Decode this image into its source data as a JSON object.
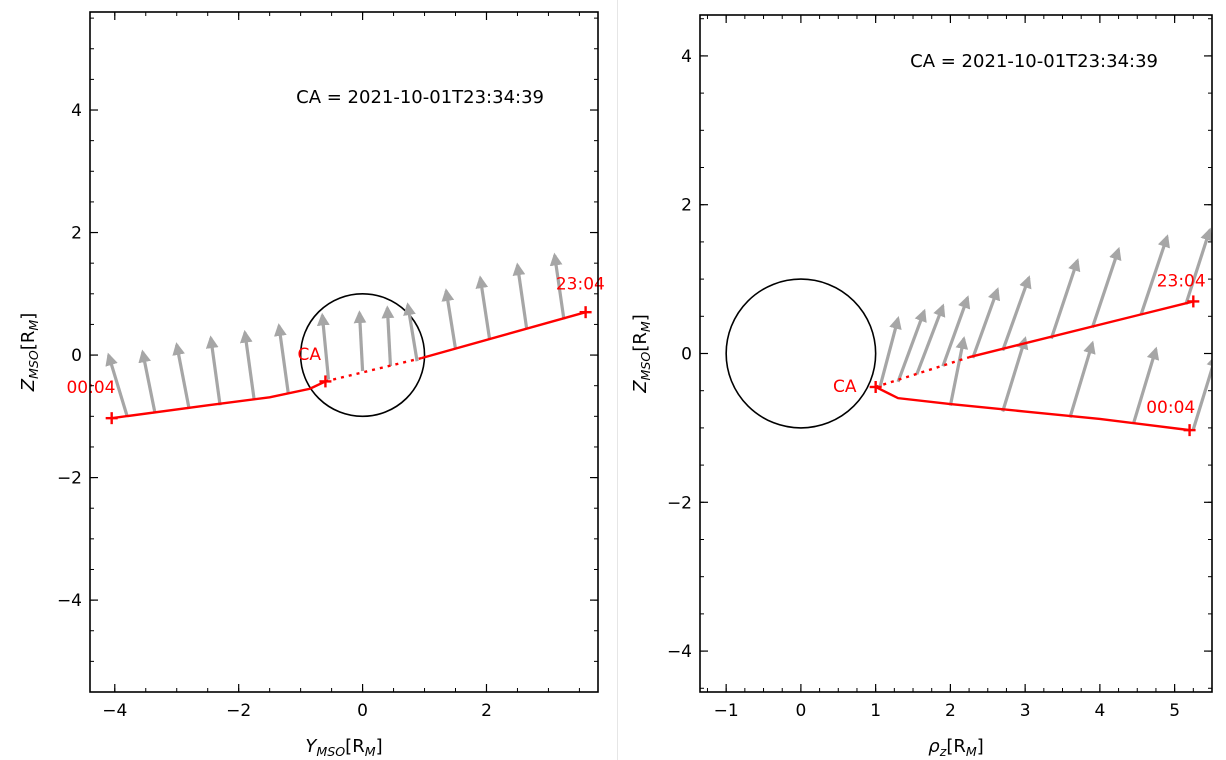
{
  "chart_data": [
    {
      "type": "line",
      "xlabel": "Y",
      "xlabel_sub": "MSO",
      "xlabel_unit": "[R",
      "xlabel_unit_sub": "M",
      "ylabel": "Z",
      "ylabel_sub": "MSO",
      "ylabel_unit": "[R",
      "ylabel_unit_sub": "M",
      "xlim": [
        -4.4,
        3.8
      ],
      "ylim": [
        -5.5,
        5.6
      ],
      "xticks": [
        -4,
        -2,
        0,
        2
      ],
      "yticks": [
        -4,
        -2,
        0,
        2,
        4
      ],
      "xtick_labels": [
        "−4",
        "−2",
        "0",
        "2"
      ],
      "ytick_labels": [
        "−4",
        "−2",
        "0",
        "2",
        "4"
      ],
      "annotation": "CA = 2021-10-01T23:34:39",
      "planet_radius": 1,
      "trajectory_color": "#ff0000",
      "arrow_color": "#a6a6a6",
      "trajectory_solid_a": [
        [
          -4.05,
          -1.03
        ],
        [
          -2.5,
          -0.82
        ],
        [
          -1.5,
          -0.69
        ],
        [
          -0.85,
          -0.55
        ],
        [
          -0.6,
          -0.43
        ]
      ],
      "trajectory_dotted": [
        [
          -0.6,
          -0.43
        ],
        [
          0.95,
          -0.05
        ]
      ],
      "trajectory_solid_b": [
        [
          0.95,
          -0.05
        ],
        [
          3.6,
          0.7
        ]
      ],
      "markers": [
        {
          "label": "00:04",
          "x": -4.05,
          "y": -1.03,
          "lx": -4.78,
          "ly": -0.62
        },
        {
          "label": "CA",
          "x": -0.6,
          "y": -0.43,
          "lx": -1.05,
          "ly": -0.08
        },
        {
          "label": "23:04",
          "x": 3.6,
          "y": 0.7,
          "lx": 3.12,
          "ly": 1.07
        }
      ],
      "vectors": [
        {
          "x": -3.8,
          "y": -1.0,
          "dx": -0.3,
          "dy": 1.0
        },
        {
          "x": -3.35,
          "y": -0.95,
          "dx": -0.2,
          "dy": 1.0
        },
        {
          "x": -2.8,
          "y": -0.88,
          "dx": -0.2,
          "dy": 1.05
        },
        {
          "x": -2.3,
          "y": -0.82,
          "dx": -0.15,
          "dy": 1.1
        },
        {
          "x": -1.75,
          "y": -0.73,
          "dx": -0.15,
          "dy": 1.1
        },
        {
          "x": -1.2,
          "y": -0.62,
          "dx": -0.15,
          "dy": 1.1
        },
        {
          "x": -0.55,
          "y": -0.4,
          "dx": -0.1,
          "dy": 1.05
        },
        {
          "x": 0.0,
          "y": -0.26,
          "dx": -0.05,
          "dy": 0.95
        },
        {
          "x": 0.45,
          "y": -0.18,
          "dx": -0.05,
          "dy": 0.95
        },
        {
          "x": 0.88,
          "y": -0.1,
          "dx": -0.15,
          "dy": 0.92
        },
        {
          "x": 1.5,
          "y": 0.1,
          "dx": -0.15,
          "dy": 0.95
        },
        {
          "x": 2.05,
          "y": 0.26,
          "dx": -0.15,
          "dy": 1.0
        },
        {
          "x": 2.65,
          "y": 0.42,
          "dx": -0.15,
          "dy": 1.05
        },
        {
          "x": 3.25,
          "y": 0.58,
          "dx": -0.15,
          "dy": 1.05
        }
      ]
    },
    {
      "type": "line",
      "xlabel": "ρ",
      "xlabel_sub": "z",
      "xlabel_unit": "[R",
      "xlabel_unit_sub": "M",
      "ylabel": "Z",
      "ylabel_sub": "MSO",
      "ylabel_unit": "[R",
      "ylabel_unit_sub": "M",
      "xlim": [
        -1.35,
        5.5
      ],
      "ylim": [
        -4.55,
        4.55
      ],
      "xticks": [
        -1,
        0,
        1,
        2,
        3,
        4,
        5
      ],
      "yticks": [
        -4,
        -2,
        0,
        2,
        4
      ],
      "xtick_labels": [
        "−1",
        "0",
        "1",
        "2",
        "3",
        "4",
        "5"
      ],
      "ytick_labels": [
        "−4",
        "−2",
        "0",
        "2",
        "4"
      ],
      "annotation": "CA = 2021-10-01T23:34:39",
      "planet_radius": 1,
      "trajectory_color": "#ff0000",
      "arrow_color": "#a6a6a6",
      "trajectory_solid_a": [
        [
          1.0,
          -0.45
        ],
        [
          1.3,
          -0.6
        ],
        [
          2.0,
          -0.68
        ],
        [
          3.0,
          -0.78
        ],
        [
          4.0,
          -0.88
        ],
        [
          5.2,
          -1.03
        ]
      ],
      "trajectory_dotted": [
        [
          1.0,
          -0.45
        ],
        [
          2.25,
          -0.05
        ]
      ],
      "trajectory_solid_b": [
        [
          2.25,
          -0.05
        ],
        [
          5.25,
          0.7
        ]
      ],
      "markers": [
        {
          "label": "00:04",
          "x": 5.2,
          "y": -1.03,
          "lx": 4.62,
          "ly": -0.8
        },
        {
          "label": "CA",
          "x": 1.0,
          "y": -0.45,
          "lx": 0.43,
          "ly": -0.52
        },
        {
          "label": "23:04",
          "x": 5.25,
          "y": 0.7,
          "lx": 4.76,
          "ly": 0.9
        }
      ],
      "vectors": [
        {
          "x": 1.05,
          "y": -0.48,
          "dx": 0.25,
          "dy": 0.95
        },
        {
          "x": 1.3,
          "y": -0.38,
          "dx": 0.35,
          "dy": 0.95
        },
        {
          "x": 1.55,
          "y": -0.28,
          "dx": 0.35,
          "dy": 0.92
        },
        {
          "x": 1.9,
          "y": -0.17,
          "dx": 0.33,
          "dy": 0.92
        },
        {
          "x": 2.3,
          "y": -0.06,
          "dx": 0.33,
          "dy": 0.92
        },
        {
          "x": 2.7,
          "y": 0.04,
          "dx": 0.35,
          "dy": 0.98
        },
        {
          "x": 3.35,
          "y": 0.2,
          "dx": 0.35,
          "dy": 1.05
        },
        {
          "x": 3.9,
          "y": 0.35,
          "dx": 0.35,
          "dy": 1.05
        },
        {
          "x": 4.55,
          "y": 0.52,
          "dx": 0.35,
          "dy": 1.05
        },
        {
          "x": 5.15,
          "y": 0.66,
          "dx": 0.32,
          "dy": 1.0
        },
        {
          "x": 2.0,
          "y": -0.7,
          "dx": 0.18,
          "dy": 0.9
        },
        {
          "x": 2.7,
          "y": -0.78,
          "dx": 0.3,
          "dy": 0.98
        },
        {
          "x": 3.6,
          "y": -0.86,
          "dx": 0.3,
          "dy": 1.0
        },
        {
          "x": 4.45,
          "y": -0.94,
          "dx": 0.3,
          "dy": 1.0
        },
        {
          "x": 5.25,
          "y": -1.02,
          "dx": 0.3,
          "dy": 0.98
        }
      ]
    }
  ]
}
